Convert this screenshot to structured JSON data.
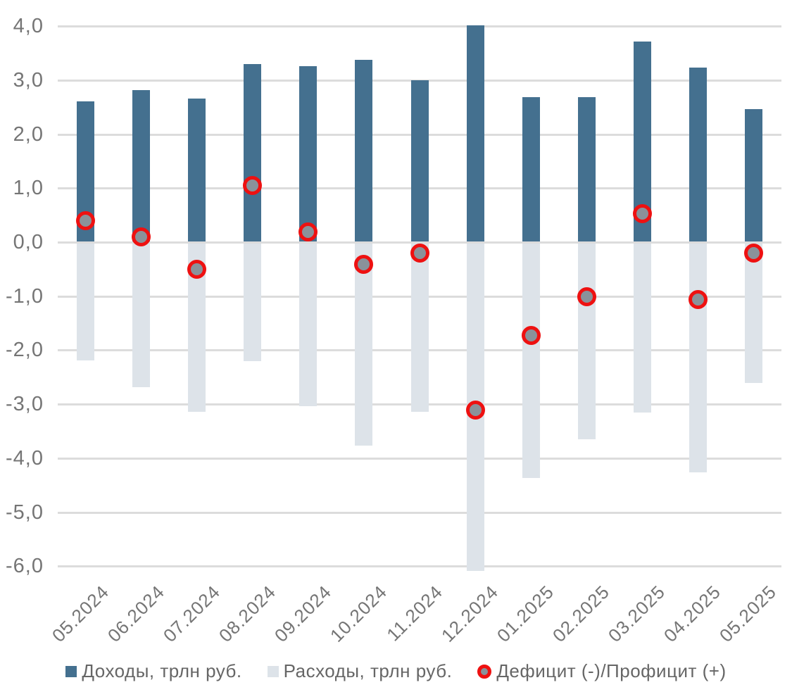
{
  "chart_data": {
    "type": "bar",
    "title": "",
    "xlabel": "",
    "ylabel": "",
    "categories": [
      "05.2024",
      "06.2024",
      "07.2024",
      "08.2024",
      "09.2024",
      "10.2024",
      "11.2024",
      "12.2024",
      "01.2025",
      "02.2025",
      "03.2025",
      "04.2025",
      "05.2025"
    ],
    "series": [
      {
        "name": "Доходы, трлн руб.",
        "type": "bar",
        "color": "#44708f",
        "values": [
          2.6,
          2.8,
          2.65,
          3.28,
          3.25,
          3.37,
          2.98,
          4.0,
          2.67,
          2.67,
          3.7,
          3.22,
          2.45
        ]
      },
      {
        "name": "Расходы, трлн руб.",
        "type": "bar",
        "color": "#dde3e9",
        "values": [
          -2.2,
          -2.7,
          -3.15,
          -2.22,
          -3.05,
          -3.78,
          -3.15,
          -6.1,
          -4.38,
          -3.67,
          -3.17,
          -4.28,
          -2.62
        ]
      },
      {
        "name": "Дефицит (-)/Профицит (+)",
        "type": "scatter",
        "marker_fill": "#8a929a",
        "marker_ring": "#ee1111",
        "values": [
          0.4,
          0.1,
          -0.5,
          1.05,
          0.2,
          -0.4,
          -0.2,
          -3.1,
          -1.72,
          -1.0,
          0.53,
          -1.05,
          -0.2
        ]
      }
    ],
    "ylim": [
      -6.0,
      4.0
    ],
    "ytick_step": 1.0,
    "yticks": [
      {
        "value": 4,
        "label": "4,0"
      },
      {
        "value": 3,
        "label": "3,0"
      },
      {
        "value": 2,
        "label": "2,0"
      },
      {
        "value": 1,
        "label": "1,0"
      },
      {
        "value": 0,
        "label": "0,0"
      },
      {
        "value": -1,
        "label": "-1,0"
      },
      {
        "value": -2,
        "label": "-2,0"
      },
      {
        "value": -3,
        "label": "-3,0"
      },
      {
        "value": -4,
        "label": "-4,0"
      },
      {
        "value": -5,
        "label": "-5,0"
      },
      {
        "value": -6,
        "label": "-6,0"
      }
    ],
    "grid": true,
    "legend_position": "bottom",
    "colors": {
      "grid": "#dcdcdc",
      "axis_text": "#757575",
      "legend_text": "#666666",
      "income": "#44708f",
      "expense": "#dde3e9",
      "marker_fill": "#8a929a",
      "marker_ring": "#ee1111"
    }
  }
}
